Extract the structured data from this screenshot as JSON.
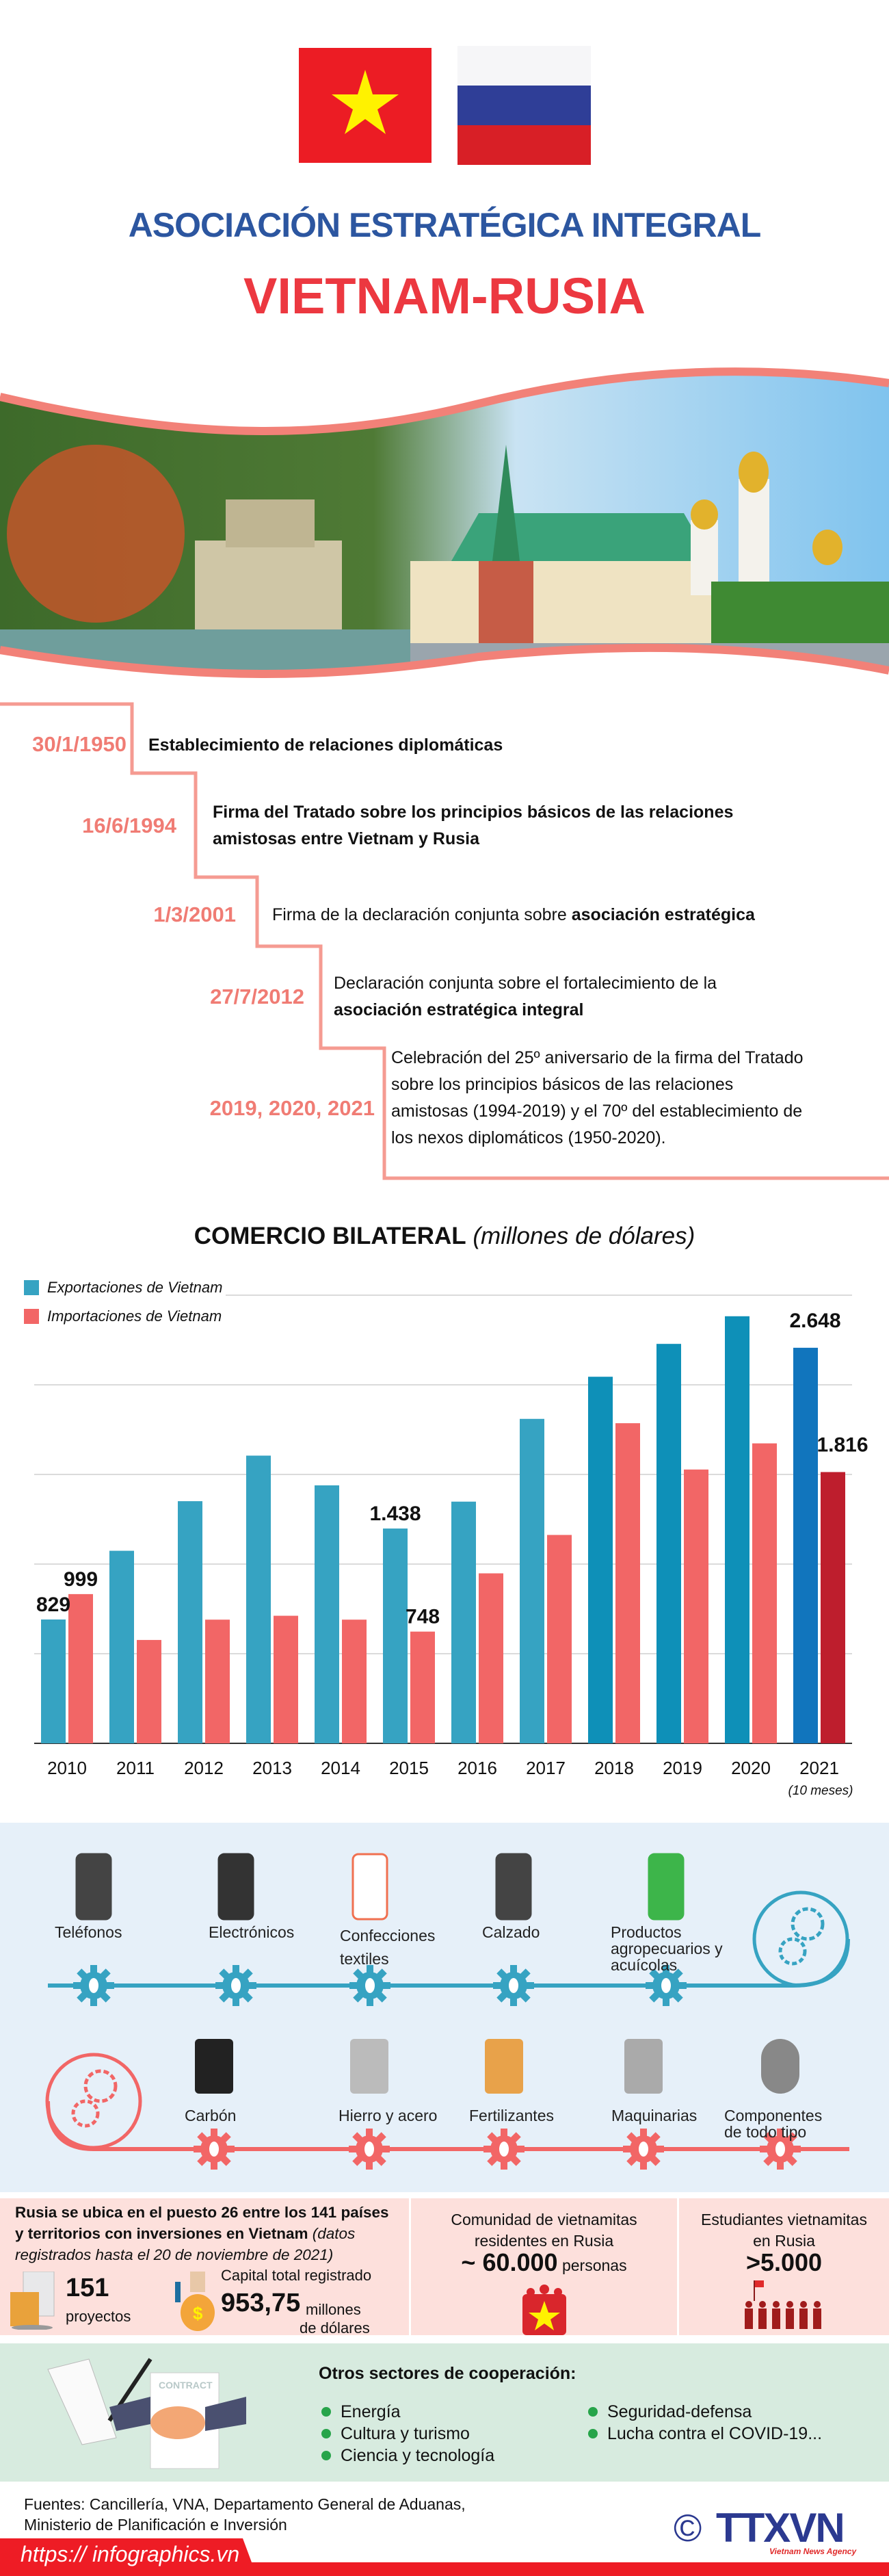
{
  "header": {
    "title_line1": "ASOCIACIÓN ESTRATÉGICA INTEGRAL",
    "title_line2": "VIETNAM-RUSIA",
    "flags": [
      "vietnam-flag",
      "russia-flag"
    ],
    "colors": {
      "blue": "#2c56a0",
      "red": "#ec3840"
    }
  },
  "timeline": [
    {
      "date": "30/1/1950",
      "lines": [
        [
          {
            "t": "Establecimiento de relaciones diplomáticas",
            "b": true
          }
        ]
      ]
    },
    {
      "date": "16/6/1994",
      "lines": [
        [
          {
            "t": "Firma del Tratado sobre los principios básicos de las relaciones",
            "b": true
          }
        ],
        [
          {
            "t": "amistosas entre Vietnam y Rusia",
            "b": true
          }
        ]
      ]
    },
    {
      "date": "1/3/2001",
      "lines": [
        [
          {
            "t": "Firma de la declaración conjunta sobre ",
            "b": false
          },
          {
            "t": "asociación estratégica",
            "b": true
          }
        ]
      ]
    },
    {
      "date": "27/7/2012",
      "lines": [
        [
          {
            "t": "Declaración conjunta sobre el fortalecimiento de la",
            "b": false
          }
        ],
        [
          {
            "t": "asociación estratégica integral",
            "b": true
          }
        ]
      ]
    },
    {
      "date": "2019, 2020, 2021",
      "lines": [
        [
          {
            "t": "Celebración del 25º aniversario de la firma del Tratado",
            "b": false
          }
        ],
        [
          {
            "t": "sobre los principios básicos de las relaciones",
            "b": false
          }
        ],
        [
          {
            "t": "amistosas (1994-2019) y el 70º del establecimiento de",
            "b": false
          }
        ],
        [
          {
            "t": "los nexos diplomáticos (1950-2020).",
            "b": false
          }
        ]
      ]
    }
  ],
  "chart_data": {
    "type": "bar",
    "title": "COMERCIO BILATERAL",
    "subtitle": "(millones de dólares)",
    "categories": [
      "2010",
      "2011",
      "2012",
      "2013",
      "2014",
      "2015",
      "2016",
      "2017",
      "2018",
      "2019",
      "2020",
      "2021"
    ],
    "category_note": {
      "2021": "(10 meses)"
    },
    "series": [
      {
        "name": "Exportaciones de Vietnam",
        "color": "#36a3c2",
        "values": [
          829,
          1289,
          1621,
          1926,
          1727,
          1438,
          1618,
          2172,
          2454,
          2674,
          2859,
          2648
        ]
      },
      {
        "name": "Importaciones de Vietnam",
        "color": "#f26666",
        "values": [
          999,
          692,
          828,
          854,
          828,
          748,
          1138,
          1395,
          2143,
          1833,
          2008,
          1816
        ]
      }
    ],
    "data_labels": [
      {
        "series": 0,
        "index": 0,
        "text": "829"
      },
      {
        "series": 1,
        "index": 0,
        "text": "999"
      },
      {
        "series": 0,
        "index": 5,
        "text": "1.438"
      },
      {
        "series": 1,
        "index": 5,
        "text": "748"
      },
      {
        "series": 0,
        "index": 11,
        "text": "2.648"
      },
      {
        "series": 1,
        "index": 11,
        "text": "1.816"
      }
    ],
    "highlight_colors": {
      "export_2018_2020": "#0e90b8",
      "export_2021": "#1175bd",
      "import_2021": "#be1e2d"
    },
    "ylim": [
      0,
      3000
    ],
    "grid": true,
    "grid_step": 600,
    "legend": "top-left"
  },
  "products": {
    "exports": [
      {
        "label": "Teléfonos",
        "icon": "phone-icon"
      },
      {
        "label": "Electrónicos",
        "icon": "computer-icon"
      },
      {
        "label": "Confecciones textiles",
        "icon": "shirt-icon"
      },
      {
        "label": "Calzado",
        "icon": "sneakers-icon"
      },
      {
        "label": "Productos agropecuarios y acuícolas",
        "icon": "vegetable-icon"
      }
    ],
    "imports": [
      {
        "label": "Carbón",
        "icon": "coal-icon"
      },
      {
        "label": "Hierro y acero",
        "icon": "steel-beam-icon"
      },
      {
        "label": "Fertilizantes",
        "icon": "fertilizer-bag-icon"
      },
      {
        "label": "Maquinarias",
        "icon": "piston-icon"
      },
      {
        "label": "Componentes de todo tipo",
        "icon": "gear-component-icon"
      }
    ]
  },
  "investment": {
    "line1": "Rusia se ubica en el puesto 26 entre los 141 países",
    "line2": "y territorios con inversiones en Vietnam",
    "line2_italic": " (datos",
    "line3": "registrados hasta el 20 de noviembre de 2021)",
    "projects_value": "151",
    "projects_label": "proyectos",
    "capital_label": "Capital total registrado",
    "capital_value": "953,75",
    "capital_unit1": "millones",
    "capital_unit2": "de dólares"
  },
  "community": {
    "line1": "Comunidad de vietnamitas",
    "line2": "residentes en Rusia",
    "value": "~ 60.000",
    "unit": "personas"
  },
  "students": {
    "line1": "Estudiantes vietnamitas",
    "line2": "en Rusia",
    "value": ">5.000"
  },
  "cooperation": {
    "title": "Otros sectores de cooperación:",
    "col1": [
      "Energía",
      "Cultura y turismo",
      "Ciencia y tecnología"
    ],
    "col2": [
      "Seguridad-defensa",
      "Lucha contra el COVID-19..."
    ],
    "contract_word": "CONTRACT"
  },
  "footer": {
    "sources_line1": "Fuentes: Cancillería, VNA, Departamento General de Aduanas,",
    "sources_line2": "Ministerio de Planificación e Inversión",
    "url": "https:// infographics.vn",
    "logo": "TTXVN",
    "logo_sub": "Vietnam News Agency",
    "copyright": "©"
  }
}
